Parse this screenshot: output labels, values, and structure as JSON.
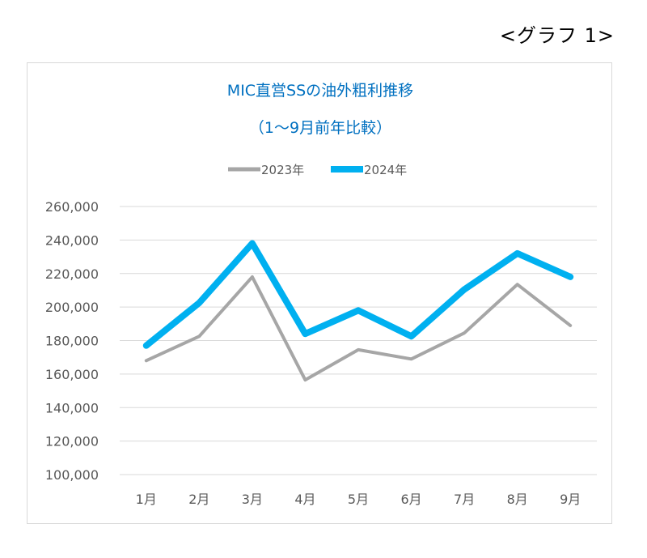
{
  "page": {
    "graph_number": "<グラフ 1>"
  },
  "chart_data": {
    "type": "line",
    "title": "MIC直営SSの油外粗利推移",
    "subtitle": "（1～9月前年比較）",
    "categories": [
      "1月",
      "2月",
      "3月",
      "4月",
      "5月",
      "6月",
      "7月",
      "8月",
      "9月"
    ],
    "series": [
      {
        "name": "2023年",
        "values": [
          168000,
          182500,
          218000,
          156500,
          174500,
          169000,
          184500,
          213500,
          189000
        ],
        "color": "#a6a6a6"
      },
      {
        "name": "2024年",
        "values": [
          177000,
          202500,
          238000,
          184000,
          198000,
          182500,
          210500,
          232000,
          218000
        ],
        "color": "#00b0f0"
      }
    ],
    "ylim": [
      100000,
      260000
    ],
    "yticks": [
      100000,
      120000,
      140000,
      160000,
      180000,
      200000,
      220000,
      240000,
      260000
    ],
    "ytick_labels": [
      "100,000",
      "120,000",
      "140,000",
      "160,000",
      "180,000",
      "200,000",
      "220,000",
      "240,000",
      "260,000"
    ],
    "grid": true,
    "legend": "top-center"
  }
}
